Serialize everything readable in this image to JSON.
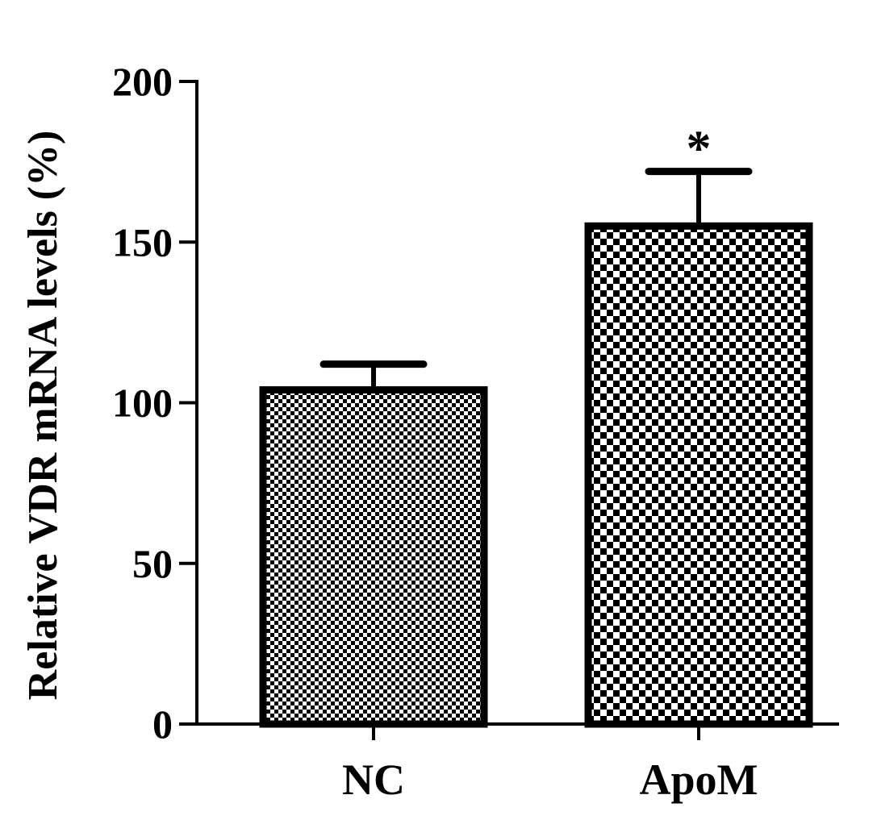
{
  "chart_data": {
    "type": "bar",
    "title": "",
    "xlabel": "",
    "ylabel": "Relative VDR mRNA levels (%)",
    "ylim": [
      0,
      200
    ],
    "yticks": [
      0,
      50,
      100,
      150,
      200
    ],
    "categories": [
      "NC",
      "ApoM"
    ],
    "values": [
      104,
      155
    ],
    "errors": [
      8,
      17
    ],
    "annotations": [
      "",
      "*"
    ],
    "patterns": [
      "fine-checker",
      "coarse-checker"
    ],
    "grid": false,
    "legend": "none"
  },
  "colors": {
    "ink": "#000000",
    "background": "#ffffff"
  }
}
